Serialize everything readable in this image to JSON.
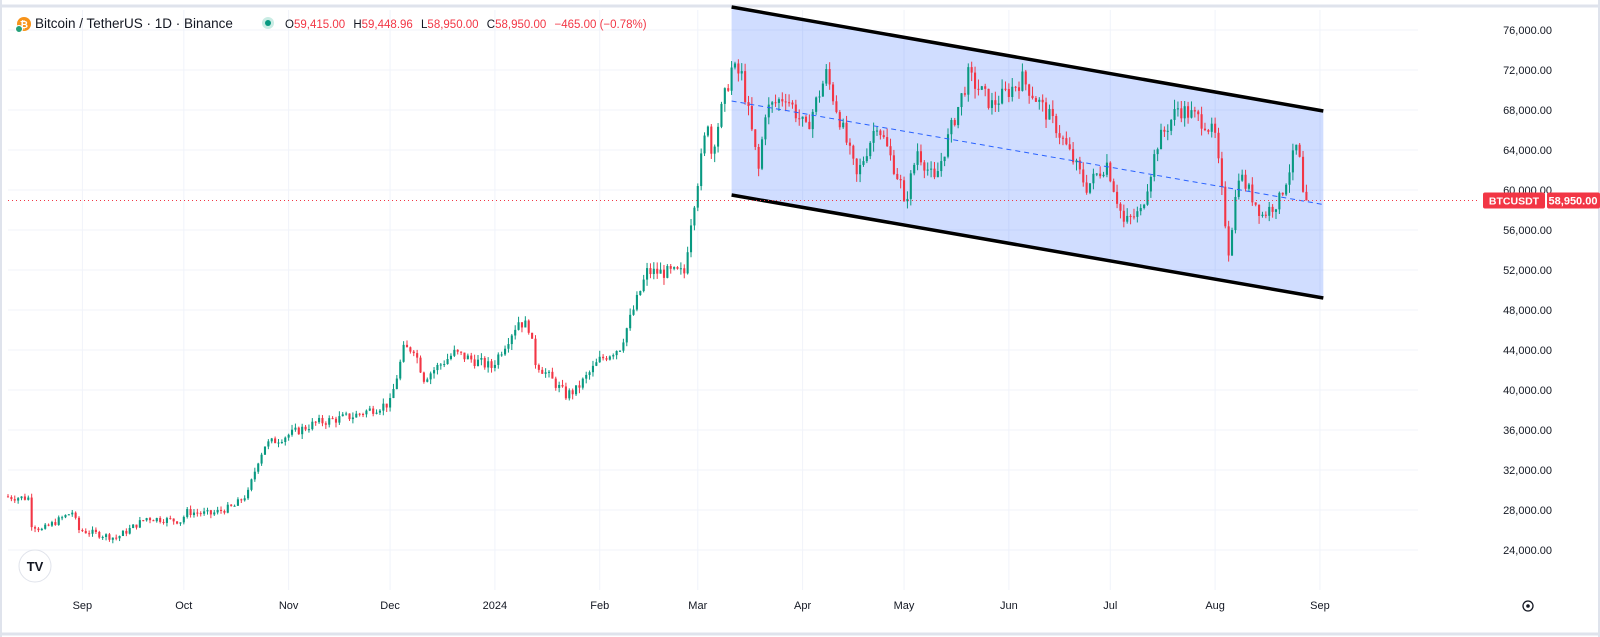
{
  "header": {
    "symbol_label": "Bitcoin / TetherUS · 1D · Binance",
    "ohlc": {
      "o_label": "O",
      "o_value": "59,415.00",
      "h_label": "H",
      "h_value": "59,448.96",
      "l_label": "L",
      "l_value": "58,950.00",
      "c_label": "C",
      "c_value": "58,950.00",
      "change": "−465.00 (−0.78%)"
    }
  },
  "price_tag": {
    "symbol": "BTCUSDT",
    "value": "58,950.00",
    "color": "#f23645"
  },
  "logo_text": "TV",
  "colors": {
    "up": "#089981",
    "down": "#f23645",
    "channel_fill": "#2962ff",
    "channel_line": "#000000",
    "grid": "#f0f3fa"
  },
  "chart_data": {
    "type": "candlestick",
    "title": "Bitcoin / TetherUS · 1D · Binance",
    "y_scale": "linear",
    "ylim": [
      20000,
      78000
    ],
    "yticks": [
      24000,
      28000,
      32000,
      36000,
      40000,
      44000,
      48000,
      52000,
      56000,
      60000,
      64000,
      68000,
      72000,
      76000
    ],
    "ytick_labels": [
      "24,000.00",
      "28,000.00",
      "32,000.00",
      "36,000.00",
      "40,000.00",
      "44,000.00",
      "48,000.00",
      "52,000.00",
      "56,000.00",
      "60,000.00",
      "64,000.00",
      "68,000.00",
      "72,000.00",
      "76,000.00"
    ],
    "x_range": [
      "2023-08-10",
      "2024-09-30"
    ],
    "xticks": [
      {
        "date": "2023-09-01",
        "label": "Sep"
      },
      {
        "date": "2023-10-01",
        "label": "Oct"
      },
      {
        "date": "2023-11-01",
        "label": "Nov"
      },
      {
        "date": "2023-12-01",
        "label": "Dec"
      },
      {
        "date": "2024-01-01",
        "label": "2024"
      },
      {
        "date": "2024-02-01",
        "label": "Feb"
      },
      {
        "date": "2024-03-01",
        "label": "Mar"
      },
      {
        "date": "2024-04-01",
        "label": "Apr"
      },
      {
        "date": "2024-05-01",
        "label": "May"
      },
      {
        "date": "2024-06-01",
        "label": "Jun"
      },
      {
        "date": "2024-07-01",
        "label": "Jul"
      },
      {
        "date": "2024-08-01",
        "label": "Aug"
      },
      {
        "date": "2024-09-01",
        "label": "Sep"
      }
    ],
    "grid": true,
    "last_price": 58950,
    "anchors": [
      [
        "2023-08-10",
        29300
      ],
      [
        "2023-08-16",
        29200
      ],
      [
        "2023-08-17",
        26600
      ],
      [
        "2023-08-20",
        26000
      ],
      [
        "2023-08-29",
        27800
      ],
      [
        "2023-08-31",
        26000
      ],
      [
        "2023-09-11",
        25200
      ],
      [
        "2023-09-20",
        27200
      ],
      [
        "2023-09-30",
        26900
      ],
      [
        "2023-10-02",
        27800
      ],
      [
        "2023-10-09",
        27600
      ],
      [
        "2023-10-16",
        28400
      ],
      [
        "2023-10-20",
        29700
      ],
      [
        "2023-10-23",
        33000
      ],
      [
        "2023-10-25",
        34500
      ],
      [
        "2023-11-09",
        36700
      ],
      [
        "2023-11-20",
        37400
      ],
      [
        "2023-12-01",
        38700
      ],
      [
        "2023-12-05",
        44000
      ],
      [
        "2023-12-08",
        44200
      ],
      [
        "2023-12-11",
        41200
      ],
      [
        "2023-12-20",
        43700
      ],
      [
        "2023-12-31",
        42300
      ],
      [
        "2024-01-08",
        46900
      ],
      [
        "2024-01-11",
        46300
      ],
      [
        "2024-01-13",
        42800
      ],
      [
        "2024-01-22",
        39500
      ],
      [
        "2024-01-25",
        40000
      ],
      [
        "2024-02-01",
        43000
      ],
      [
        "2024-02-07",
        44300
      ],
      [
        "2024-02-10",
        47100
      ],
      [
        "2024-02-15",
        51800
      ],
      [
        "2024-02-26",
        51700
      ],
      [
        "2024-02-28",
        57000
      ],
      [
        "2024-03-04",
        67000
      ],
      [
        "2024-03-05",
        63800
      ],
      [
        "2024-03-11",
        72100
      ],
      [
        "2024-03-14",
        71400
      ],
      [
        "2024-03-19",
        62000
      ],
      [
        "2024-03-21",
        67900
      ],
      [
        "2024-03-27",
        69500
      ],
      [
        "2024-04-02",
        66000
      ],
      [
        "2024-04-08",
        71600
      ],
      [
        "2024-04-12",
        67100
      ],
      [
        "2024-04-17",
        61300
      ],
      [
        "2024-04-23",
        66800
      ],
      [
        "2024-04-30",
        60600
      ],
      [
        "2024-05-01",
        58300
      ],
      [
        "2024-05-05",
        64000
      ],
      [
        "2024-05-10",
        60800
      ],
      [
        "2024-05-15",
        66200
      ],
      [
        "2024-05-20",
        71400
      ],
      [
        "2024-05-27",
        68500
      ],
      [
        "2024-06-05",
        71100
      ],
      [
        "2024-06-15",
        66300
      ],
      [
        "2024-06-24",
        60300
      ],
      [
        "2024-06-30",
        62700
      ],
      [
        "2024-07-05",
        56700
      ],
      [
        "2024-07-10",
        57800
      ],
      [
        "2024-07-15",
        64700
      ],
      [
        "2024-07-21",
        68200
      ],
      [
        "2024-07-29",
        66800
      ],
      [
        "2024-08-01",
        65300
      ],
      [
        "2024-08-05",
        54000
      ],
      [
        "2024-08-08",
        61700
      ],
      [
        "2024-08-15",
        57500
      ],
      [
        "2024-08-20",
        59000
      ],
      [
        "2024-08-25",
        64200
      ],
      [
        "2024-08-26",
        62800
      ],
      [
        "2024-08-27",
        59400
      ],
      [
        "2024-08-28",
        58950
      ]
    ],
    "channel": {
      "upper": [
        [
          "2024-03-11",
          78300
        ],
        [
          "2024-09-02",
          67900
        ]
      ],
      "lower": [
        [
          "2024-03-11",
          59500
        ],
        [
          "2024-09-02",
          49200
        ]
      ],
      "mid": [
        [
          "2024-03-11",
          68900
        ],
        [
          "2024-09-02",
          58550
        ]
      ]
    }
  }
}
